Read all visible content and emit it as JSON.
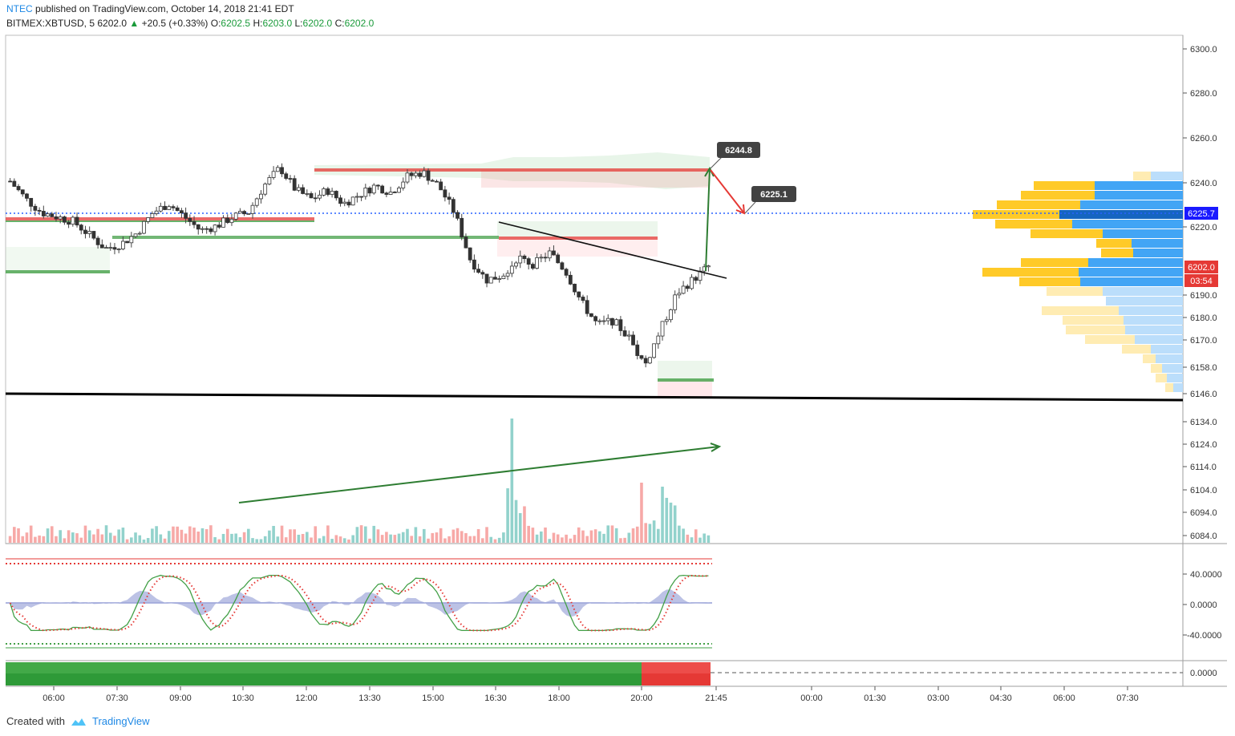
{
  "header": {
    "publisher": "NTEC",
    "published_text": "published on TradingView.com, October 14, 2018 21:41 EDT",
    "symbol": "BITMEX:XBTUSD, 5",
    "last": "6202.0",
    "change": "+20.5 (+0.33%)",
    "o_label": "O:",
    "o": "6202.5",
    "h_label": "H:",
    "h": "6203.0",
    "l_label": "L:",
    "l": "6202.0",
    "c_label": "C:",
    "c": "6202.0"
  },
  "footer": {
    "created_with": "Created with",
    "brand": "TradingView"
  },
  "colors": {
    "up": "#26a69a",
    "down": "#ef5350",
    "accent": "#1e88e5",
    "green_line": "#2e7d32",
    "red_line": "#e53935"
  },
  "chart_data": {
    "type": "candlestick",
    "x_ticks": [
      "06:00",
      "07:30",
      "09:00",
      "10:30",
      "12:00",
      "13:30",
      "15:00",
      "16:30",
      "18:00",
      "20:00",
      "21:45",
      "00:00",
      "01:30",
      "03:00",
      "04:30",
      "06:00",
      "07:30"
    ],
    "price_ticks": [
      "6300.0",
      "6280.0",
      "6260.0",
      "6240.0",
      "6220.0",
      "6190.0",
      "6180.0",
      "6170.0",
      "6158.0",
      "6146.0",
      "6134.0",
      "6124.0",
      "6114.0",
      "6104.0",
      "6094.0",
      "6084.0"
    ],
    "price_markers": {
      "current_line": "6225.7",
      "last_price": "6202.0",
      "countdown": "03:54"
    },
    "callouts": [
      "6244.8",
      "6225.1"
    ],
    "oscillator_ticks": [
      "40.0000",
      "0.0000",
      "-40.0000"
    ],
    "bottom_indicator_ticks": [
      "0.0000"
    ],
    "approx_price_path": [
      6240,
      6232,
      6226,
      6224,
      6222,
      6216,
      6210,
      6212,
      6217,
      6226,
      6230,
      6224,
      6218,
      6220,
      6224,
      6226,
      6238,
      6246,
      6236,
      6232,
      6236,
      6230,
      6234,
      6238,
      6235,
      6242,
      6244,
      6238,
      6226,
      6205,
      6196,
      6198,
      6206,
      6203,
      6208,
      6200,
      6186,
      6176,
      6178,
      6170,
      6158,
      6174,
      6190,
      6196,
      6202
    ]
  }
}
